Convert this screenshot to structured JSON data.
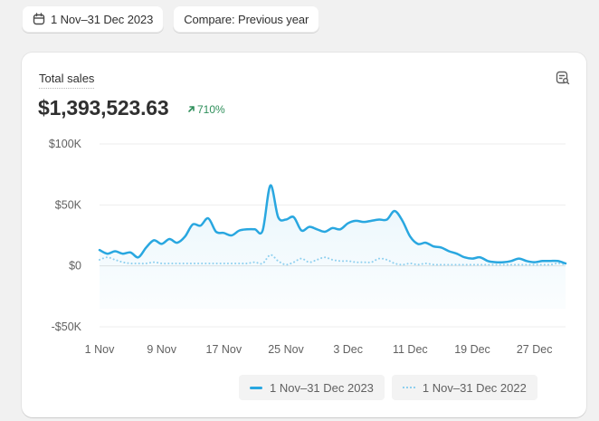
{
  "toolbar": {
    "date_range_label": "1 Nov–31 Dec 2023",
    "compare_label": "Compare: Previous year",
    "date_icon": "calendar-icon"
  },
  "card": {
    "title": "Total sales",
    "value": "$1,393,523.63",
    "change": "710%",
    "change_direction": "up",
    "change_color": "#2f8f5b",
    "corner_icon": "chart-search-icon"
  },
  "chart_data": {
    "type": "line",
    "title": "Total sales",
    "xlabel": "",
    "ylabel": "",
    "ylim": [
      -50000,
      100000
    ],
    "yticks": [
      "$100K",
      "$50K",
      "$0",
      "-$50K"
    ],
    "ytick_values": [
      100000,
      50000,
      0,
      -50000
    ],
    "xticks": [
      "1 Nov",
      "9 Nov",
      "17 Nov",
      "25 Nov",
      "3 Dec",
      "11 Dec",
      "19 Dec",
      "27 Dec"
    ],
    "grid": true,
    "legend_position": "bottom-right",
    "x_start": "1 Nov",
    "x_end": "31 Dec",
    "series": [
      {
        "name": "1 Nov–31 Dec 2023",
        "style": "solid",
        "color": "#29a7e0",
        "values": [
          13000,
          10000,
          12000,
          10000,
          11000,
          7000,
          15000,
          21000,
          18000,
          22000,
          19000,
          24000,
          34000,
          33000,
          39000,
          28000,
          27000,
          25000,
          29000,
          30000,
          30000,
          29000,
          66000,
          40000,
          38000,
          40000,
          29000,
          32000,
          30000,
          28000,
          31000,
          30000,
          35000,
          37000,
          36000,
          37000,
          38000,
          38000,
          45000,
          37000,
          24000,
          18000,
          19000,
          16000,
          15000,
          12000,
          10000,
          7000,
          6000,
          7000,
          4000,
          3000,
          3000,
          4000,
          6000,
          4000,
          3000,
          4000,
          4000,
          4000,
          2000
        ]
      },
      {
        "name": "1 Nov–31 Dec 2022",
        "style": "dotted",
        "color": "#8fd0ef",
        "values": [
          5000,
          7000,
          5000,
          3000,
          2000,
          2000,
          2000,
          3000,
          2000,
          2000,
          2000,
          2000,
          2000,
          2000,
          2000,
          2000,
          2000,
          2000,
          2000,
          2000,
          3000,
          2000,
          9000,
          4000,
          1000,
          3000,
          6000,
          3000,
          5000,
          7000,
          5000,
          4000,
          4000,
          3000,
          3000,
          3000,
          6000,
          5000,
          2000,
          1000,
          2000,
          1000,
          2000,
          1000,
          1000,
          1000,
          1000,
          1000,
          1000,
          1000,
          1000,
          1000,
          1000,
          1000,
          1000,
          1000,
          1000,
          1000,
          1000,
          2000,
          1000
        ]
      }
    ]
  },
  "legend": {
    "items": [
      {
        "label": "1 Nov–31 Dec 2023",
        "style": "solid"
      },
      {
        "label": "1 Nov–31 Dec 2022",
        "style": "dotted"
      }
    ]
  }
}
